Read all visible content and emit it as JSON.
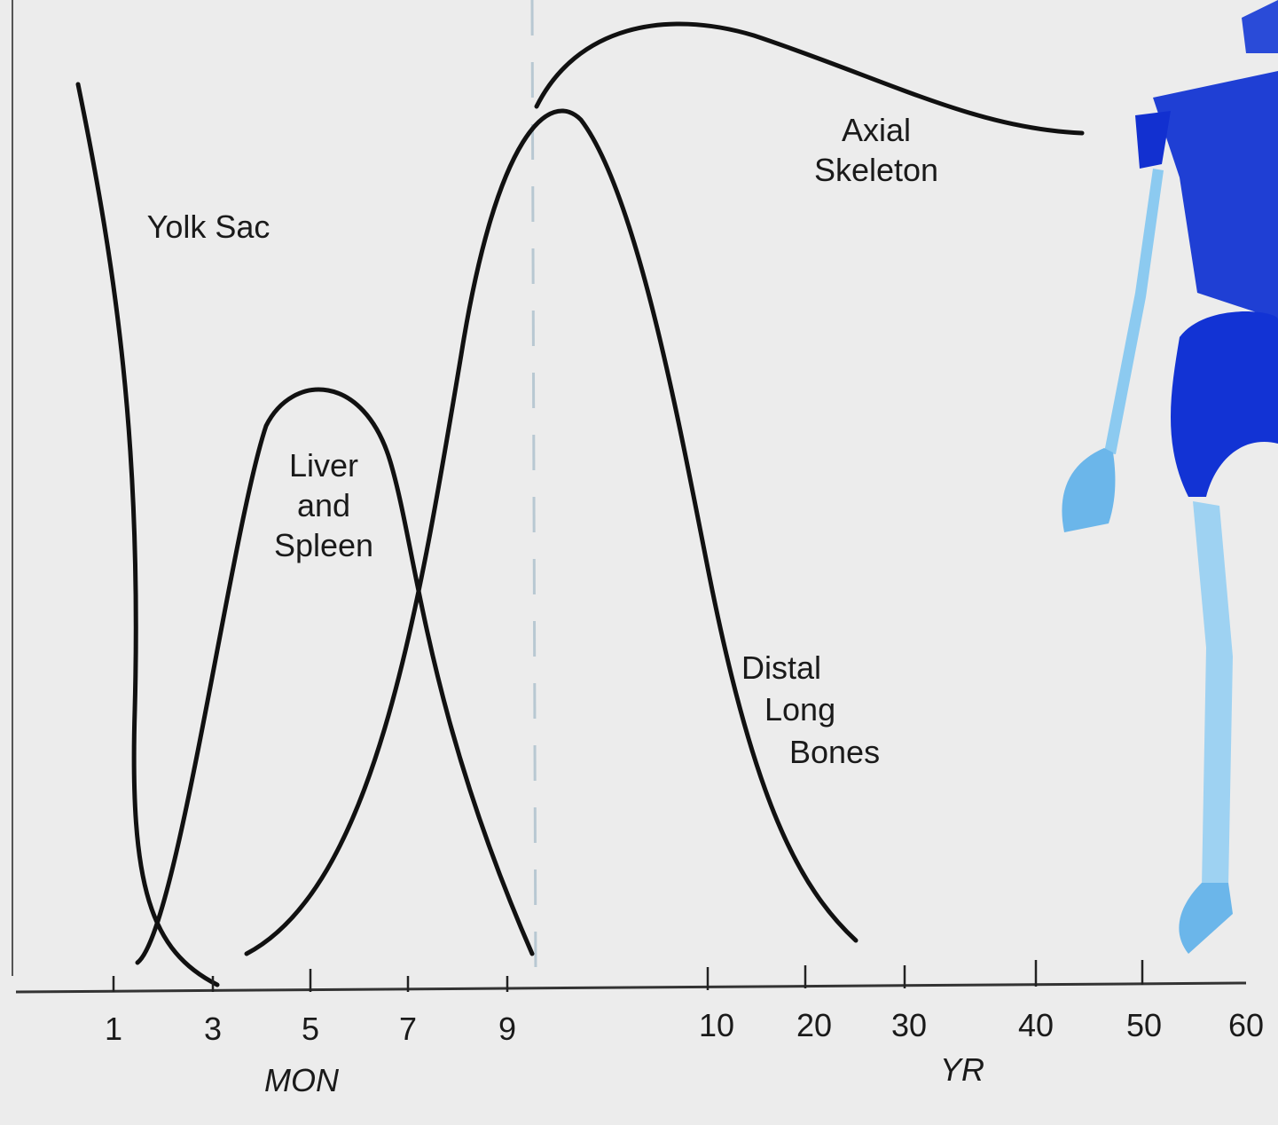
{
  "labels": {
    "yolk_sac": "Yolk Sac",
    "liver_spleen": [
      "Liver",
      "and",
      "Spleen"
    ],
    "axial_skeleton": [
      "Axial",
      "Skeleton"
    ],
    "distal_long_bones": [
      "Distal",
      "Long",
      "Bones"
    ]
  },
  "axis": {
    "month_ticks": [
      "1",
      "3",
      "5",
      "7",
      "9"
    ],
    "year_ticks": [
      "10",
      "20",
      "30",
      "40",
      "50",
      "60"
    ],
    "month_label": "MON",
    "year_label": "YR"
  }
}
